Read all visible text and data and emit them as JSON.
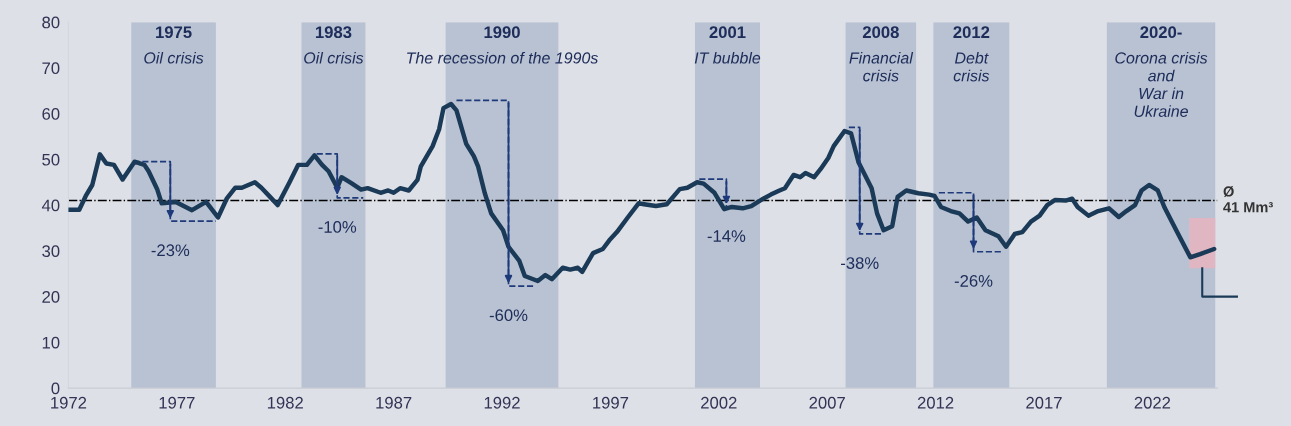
{
  "chart_data": {
    "type": "line",
    "xlim": [
      1972,
      2025
    ],
    "xticks": [
      1972,
      1977,
      1982,
      1987,
      1992,
      1997,
      2002,
      2007,
      2012,
      2017,
      2022
    ],
    "ylim": [
      0,
      80
    ],
    "yticks": [
      0,
      10,
      20,
      30,
      40,
      50,
      60,
      70,
      80
    ],
    "grid": false,
    "legend": false,
    "marker": "none",
    "line_style": "solid",
    "series": [
      {
        "color": "#1b3a57",
        "x": [
          1972.0,
          1972.5,
          1972.8,
          1973.1,
          1973.45,
          1973.75,
          1974.1,
          1974.5,
          1975.05,
          1975.5,
          1975.7,
          1976.1,
          1976.3,
          1976.95,
          1977.7,
          1978.35,
          1978.9,
          1979.3,
          1979.7,
          1980.0,
          1980.6,
          1980.9,
          1981.3,
          1981.65,
          1982.2,
          1982.6,
          1983.0,
          1983.35,
          1983.7,
          1984.0,
          1984.4,
          1984.6,
          1985.05,
          1985.5,
          1985.8,
          1986.4,
          1986.75,
          1987.0,
          1987.3,
          1987.7,
          1988.1,
          1988.25,
          1988.8,
          1989.1,
          1989.3,
          1989.65,
          1989.9,
          1990.35,
          1990.7,
          1990.9,
          1991.2,
          1991.5,
          1992.05,
          1992.3,
          1992.8,
          1993.05,
          1993.65,
          1994.0,
          1994.3,
          1994.8,
          1995.15,
          1995.5,
          1995.7,
          1996.2,
          1996.65,
          1996.95,
          1997.3,
          1997.8,
          1998.3,
          1998.55,
          1999.1,
          1999.6,
          2000.2,
          2000.55,
          2001.0,
          2001.3,
          2001.8,
          2002.25,
          2002.6,
          2003.1,
          2003.5,
          2004.05,
          2004.4,
          2004.8,
          2005.05,
          2005.45,
          2005.75,
          2006.0,
          2006.4,
          2006.7,
          2007.05,
          2007.3,
          2007.8,
          2008.1,
          2008.45,
          2009.05,
          2009.3,
          2009.6,
          2010.0,
          2010.25,
          2010.65,
          2011.2,
          2011.7,
          2011.95,
          2012.25,
          2012.7,
          2013.1,
          2013.5,
          2013.9,
          2014.3,
          2014.9,
          2015.25,
          2015.65,
          2016.0,
          2016.4,
          2016.8,
          2017.15,
          2017.5,
          2018.0,
          2018.3,
          2018.55,
          2019.05,
          2019.5,
          2020.0,
          2020.45,
          2020.8,
          2021.2,
          2021.5,
          2021.85,
          2022.25,
          2022.55,
          2023.1,
          2023.75,
          2024.2,
          2024.85
        ],
        "values": [
          39,
          39,
          42,
          44.4,
          51.1,
          49.1,
          48.8,
          45.6,
          49.5,
          48.8,
          47.4,
          43.4,
          40.4,
          40.7,
          38.9,
          40.7,
          37.3,
          41.4,
          43.8,
          43.8,
          45,
          43.8,
          41.8,
          40,
          45,
          48.8,
          48.8,
          50.9,
          48.8,
          47.4,
          43.8,
          46.1,
          44.8,
          43.4,
          43.7,
          42.7,
          43.2,
          42.7,
          43.7,
          43.2,
          45.5,
          48.4,
          52.9,
          56.6,
          61.2,
          62.1,
          60.7,
          53.4,
          50.7,
          48.4,
          42.7,
          38.2,
          34.5,
          30.9,
          27.8,
          24.5,
          23.4,
          24.7,
          23.8,
          26.3,
          25.9,
          26.3,
          25.4,
          29.5,
          30.4,
          32.3,
          34.1,
          37.3,
          40.4,
          40.2,
          39.8,
          40.2,
          43.5,
          43.8,
          45,
          44.7,
          42.7,
          39.1,
          39.6,
          39.3,
          39.8,
          41.4,
          42.3,
          43.2,
          43.7,
          46.6,
          46.1,
          47,
          46.1,
          47.9,
          50.3,
          52.9,
          56.2,
          55.7,
          49.3,
          43.7,
          38.2,
          34.5,
          35.4,
          41.8,
          43.2,
          42.6,
          42.3,
          42,
          39.6,
          38.7,
          38.2,
          36.4,
          37.3,
          34.5,
          33.2,
          30.9,
          33.7,
          34.1,
          36.4,
          37.7,
          40,
          41.1,
          41,
          41.4,
          39.6,
          37.7,
          38.7,
          39.3,
          37.4,
          38.7,
          40,
          43.2,
          44.4,
          43.2,
          39.6,
          34.5,
          28.6,
          29.3,
          30.4
        ]
      },
      {
        "color": "#1f3a7a",
        "line_style": "dashed",
        "x": [
          1975.0,
          1976.7,
          1976.7,
          1978.8
        ],
        "values": [
          49.5,
          49.5,
          36.5,
          36.5
        ]
      },
      {
        "color": "#1f3a7a",
        "line_style": "dashed",
        "x": [
          1983.45,
          1984.4,
          1984.4,
          1985.6
        ],
        "values": [
          51.2,
          51.2,
          41.6,
          41.6
        ]
      },
      {
        "color": "#1f3a7a",
        "line_style": "dashed",
        "x": [
          1989.9,
          1992.3,
          1992.3,
          1993.45
        ],
        "values": [
          62.9,
          62.9,
          22.3,
          22.3
        ]
      },
      {
        "color": "#1f3a7a",
        "line_style": "dashed",
        "x": [
          2001.1,
          2002.35,
          2002.35,
          2002.35
        ],
        "values": [
          45.7,
          45.7,
          39.6,
          39.6
        ]
      },
      {
        "color": "#1f3a7a",
        "line_style": "dashed",
        "x": [
          2008.0,
          2008.5,
          2008.5,
          2009.6
        ],
        "values": [
          57,
          57,
          33.7,
          33.7
        ]
      },
      {
        "color": "#1f3a7a",
        "line_style": "dashed",
        "x": [
          2012.15,
          2013.75,
          2013.75,
          2015.1
        ],
        "values": [
          42.7,
          42.7,
          29.8,
          29.8
        ]
      }
    ],
    "bands": [
      {
        "axis": "x",
        "from": 1974.9,
        "to": 1978.8,
        "label": "1975\nOil crisis",
        "color": "#b8c2d3"
      },
      {
        "axis": "x",
        "from": 1982.75,
        "to": 1985.7,
        "label": "1983\nOil crisis",
        "color": "#b8c2d3"
      },
      {
        "axis": "x",
        "from": 1989.4,
        "to": 1994.6,
        "label": "1990\nThe recession of the 1990s",
        "color": "#b8c2d3"
      },
      {
        "axis": "x",
        "from": 2000.9,
        "to": 2003.9,
        "label": "2001\nIT bubble",
        "color": "#b8c2d3"
      },
      {
        "axis": "x",
        "from": 2007.85,
        "to": 2011.1,
        "label": "2008\nFinancial\ncrisis",
        "color": "#b8c2d3"
      },
      {
        "axis": "x",
        "from": 2011.9,
        "to": 2015.4,
        "label": "2012\nDebt\ncrisis",
        "color": "#b8c2d3"
      },
      {
        "axis": "x",
        "from": 2019.9,
        "to": 2024.9,
        "label": "2020-\nCorona crisis\nand\nWar in\nUkraine",
        "color": "#b8c2d3"
      }
    ],
    "ref_lines": [
      {
        "axis": "y",
        "value": 41,
        "label": "Ø\n41 Mm³",
        "color": "#000000",
        "line_style": "dashed"
      }
    ],
    "annotations": [
      "-23%",
      "-10%",
      "-60%",
      "-14%",
      "-38%",
      "-26%"
    ]
  }
}
